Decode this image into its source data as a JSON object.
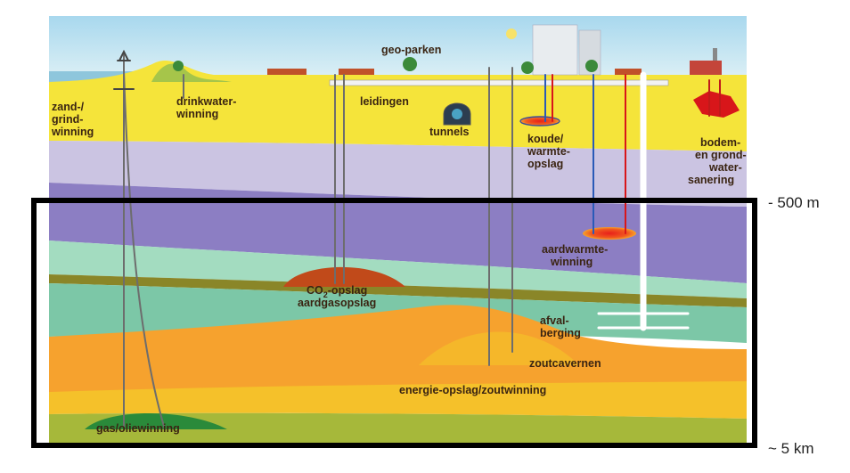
{
  "labels": {
    "sand_gravel": [
      "zand-/",
      "grind-",
      "winning"
    ],
    "drinking_water": [
      "drinkwater-",
      "winning"
    ],
    "geo_parks": "geo-parken",
    "pipelines": "leidingen",
    "tunnels": "tunnels",
    "thermal_storage": [
      "koude/",
      "warmte-",
      "opslag"
    ],
    "remediation": [
      "bodem-",
      "en grond-",
      "water-",
      "sanering"
    ],
    "geothermal": [
      "aardwarmte-",
      "winning"
    ],
    "co2_prefix": "CO",
    "co2_sub": "2",
    "co2_suffix": "-opslag",
    "gas_storage": "aardgasopslag",
    "waste_disposal": [
      "afval-",
      "berging"
    ],
    "salt_caverns": "zoutcavernen",
    "energy_storage": "energie-opslag/zoutwinning",
    "oil_gas": "gas/oliewinning"
  },
  "depth_markers": {
    "upper": "- 500 m",
    "lower": "~ 5 km"
  },
  "colors": {
    "sky": "#bfe3f0",
    "topsoil": "#f5e43a",
    "lavender": "#c9c2e0",
    "purple": "#8e7fc4",
    "teal": "#8fcfb0",
    "olive": "#8f8a2a",
    "orange": "#f6a12e",
    "frame": "#000000"
  }
}
